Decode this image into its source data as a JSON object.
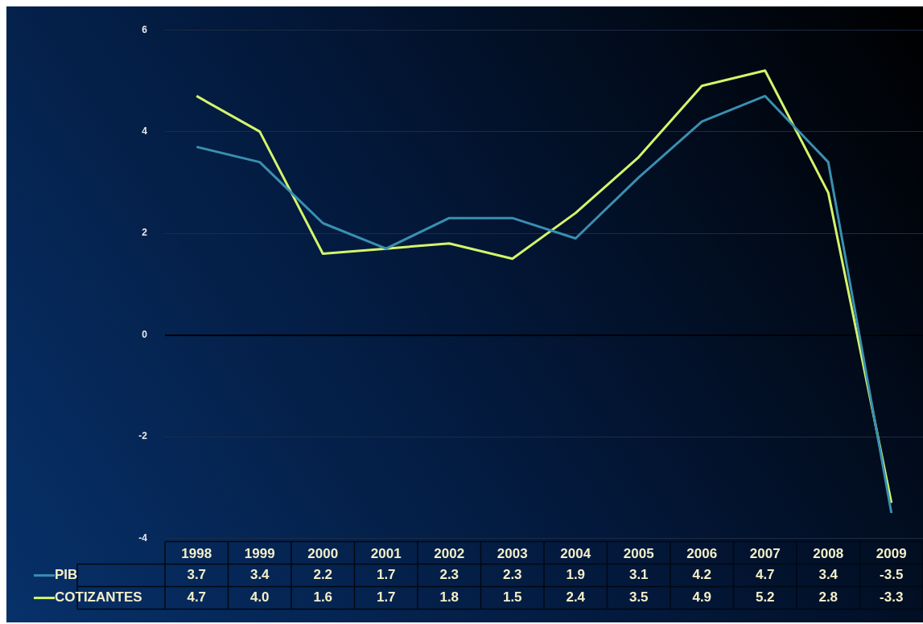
{
  "chart_data": {
    "type": "line",
    "categories": [
      "1998",
      "1999",
      "2000",
      "2001",
      "2002",
      "2003",
      "2004",
      "2005",
      "2006",
      "2007",
      "2008",
      "2009"
    ],
    "series": [
      {
        "name": "PIB",
        "color": "#3a8fb0",
        "values": [
          3.7,
          3.4,
          2.2,
          1.7,
          2.3,
          2.3,
          1.9,
          3.1,
          4.2,
          4.7,
          3.4,
          -3.5
        ],
        "value_labels": [
          "3.7",
          "3.4",
          "2.2",
          "1.7",
          "2.3",
          "2.3",
          "1.9",
          "3.1",
          "4.2",
          "4.7",
          "3.4",
          "-3.5"
        ]
      },
      {
        "name": "COTIZANTES",
        "color": "#d4f56a",
        "values": [
          4.7,
          4.0,
          1.6,
          1.7,
          1.8,
          1.5,
          2.4,
          3.5,
          4.9,
          5.2,
          2.8,
          -3.3
        ],
        "value_labels": [
          "4.7",
          "4.0",
          "1.6",
          "1.7",
          "1.8",
          "1.5",
          "2.4",
          "3.5",
          "4.9",
          "5.2",
          "2.8",
          "-3.3"
        ]
      }
    ],
    "ylim": [
      -4,
      6
    ],
    "yticks": [
      -4,
      -2,
      0,
      2,
      4,
      6
    ],
    "grid": "y",
    "legend": "bottom",
    "marker": "none",
    "line_style": "solid"
  }
}
